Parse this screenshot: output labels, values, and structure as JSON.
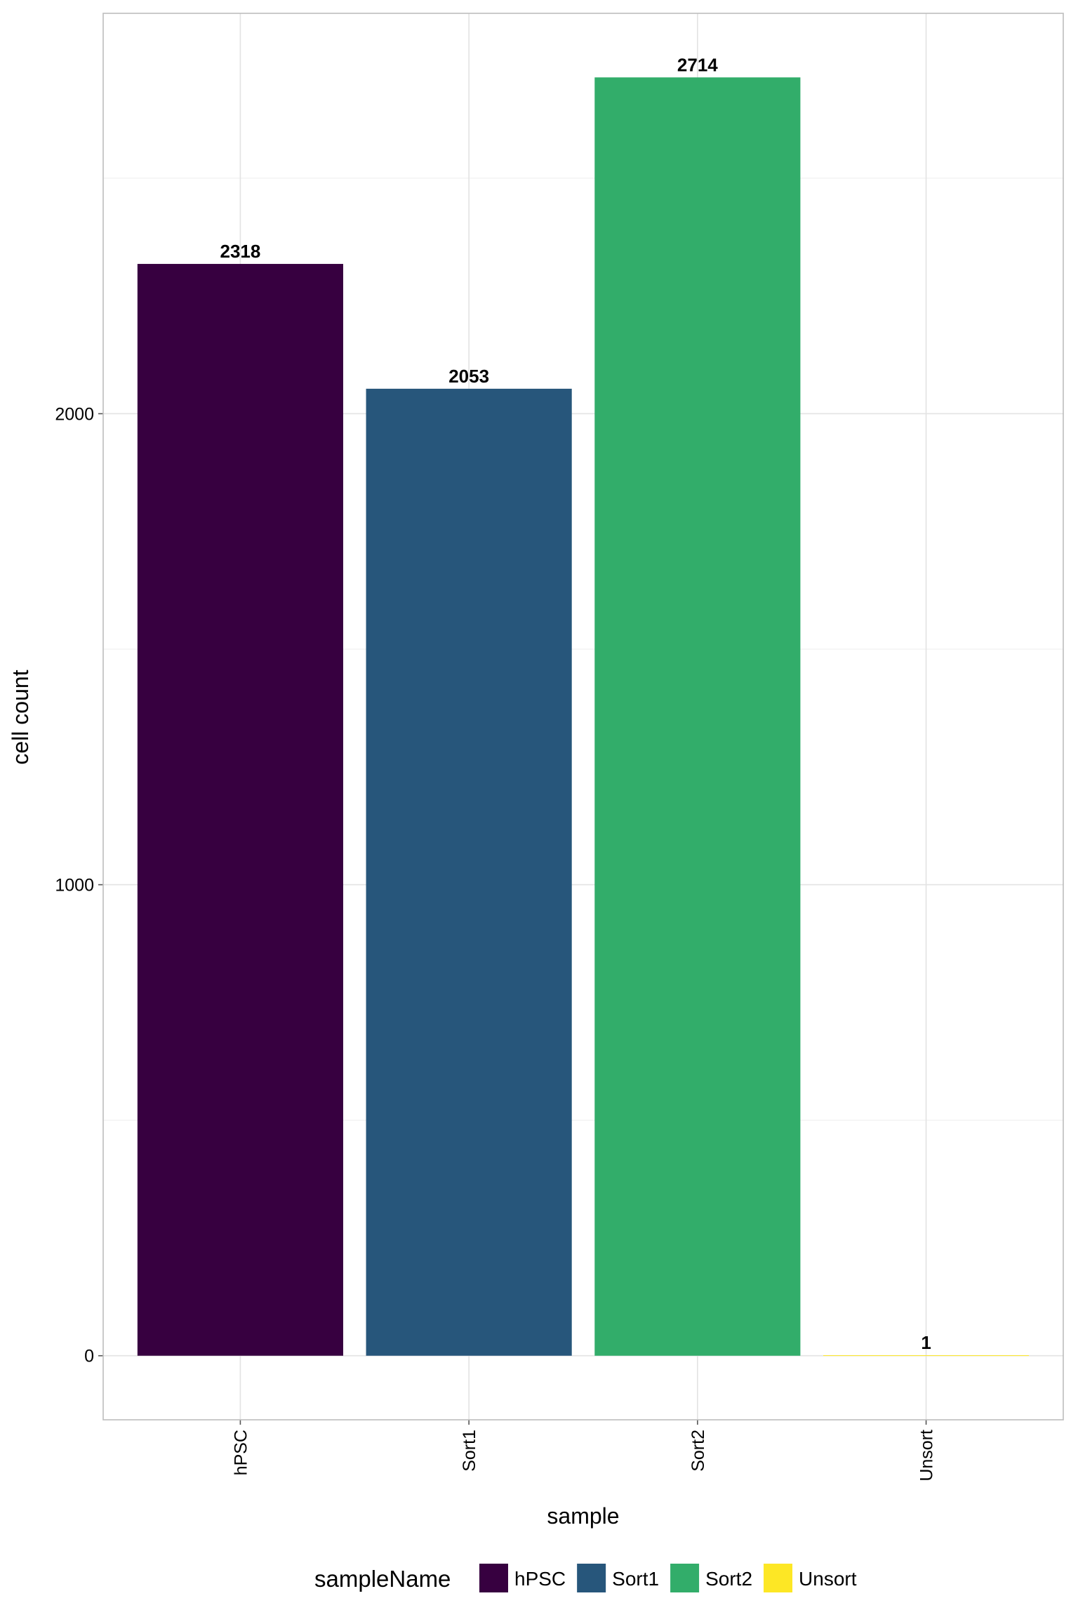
{
  "chart_data": {
    "type": "bar",
    "x_label": "sample",
    "y_label": "cell count",
    "legend_title": "sampleName",
    "categories": [
      "hPSC",
      "Sort1",
      "Sort2",
      "Unsort"
    ],
    "values": [
      2318,
      2053,
      2714,
      1
    ],
    "colors": [
      "#370040",
      "#27567b",
      "#32ad6a",
      "#fde725"
    ],
    "ylim": [
      -136,
      2850
    ],
    "yticks": [
      0,
      1000,
      2000
    ],
    "minor_yticks": [
      500,
      1500,
      2500
    ],
    "grid": true,
    "legend_position": "bottom"
  }
}
